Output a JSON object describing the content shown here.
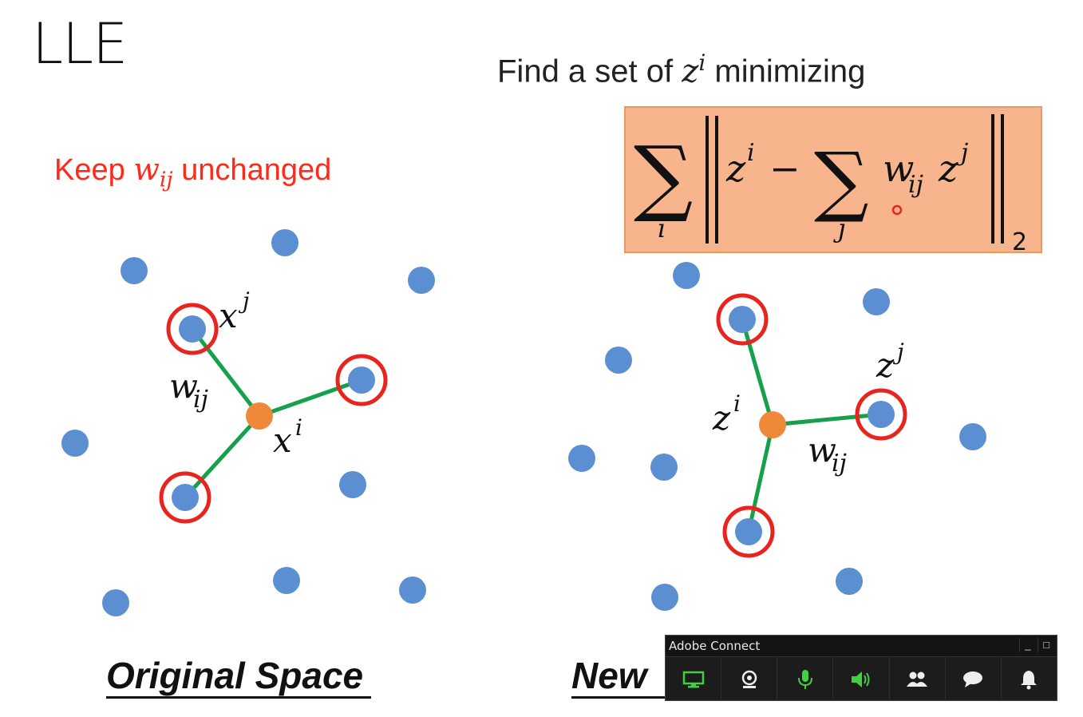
{
  "slide": {
    "title": "LLE",
    "find_prefix": "Find a set of ",
    "find_var": "z",
    "find_sup": "i",
    "find_suffix": " minimizing",
    "keep_prefix": "Keep ",
    "keep_var": "w",
    "keep_sub": "ij",
    "keep_suffix": " unchanged",
    "caption_left": "Original Space",
    "caption_right": "New"
  },
  "formula": {
    "sum_index_i": "i",
    "sum_index_j": "j",
    "z": "z",
    "sup_i": "i",
    "minus": "−",
    "w": "w",
    "sub_ij": "ij",
    "sup_j": "j",
    "norm_sub": "2"
  },
  "labels": {
    "x_j": "x",
    "x_j_sup": "j",
    "x_i": "x",
    "x_i_sup": "i",
    "w_left": "w",
    "w_left_sub": "ij",
    "z_j": "z",
    "z_j_sup": "j",
    "z_i": "z",
    "z_i_sup": "i",
    "w_right": "w",
    "w_right_sub": "ij"
  },
  "colors": {
    "point": "#5b8fd1",
    "center": "#f0883a",
    "ring": "#e8241e",
    "edge": "#15a04b",
    "formula_bg": "#f8b48c",
    "keep_text": "#ff2a1a"
  },
  "adobe_connect": {
    "title": "Adobe Connect",
    "minimize_symbol": "_",
    "maximize_symbol": "□",
    "buttons": [
      "share-screen-icon",
      "webcam-icon",
      "microphone-icon",
      "speaker-icon",
      "attendees-icon",
      "chat-icon",
      "notification-bell-icon"
    ]
  }
}
